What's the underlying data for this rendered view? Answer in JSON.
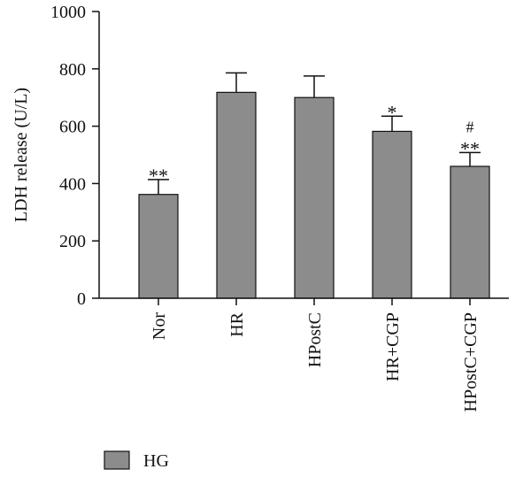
{
  "chart_data": {
    "type": "bar",
    "ylabel": "LDH release (U/L)",
    "xlabel": "",
    "ylim": [
      0,
      1000
    ],
    "yticks": [
      0,
      200,
      400,
      600,
      800,
      1000
    ],
    "categories": [
      "Nor",
      "HR",
      "HPostC",
      "HR+CGP",
      "HPostC+CGP"
    ],
    "series": [
      {
        "name": "HG",
        "color": "#8c8c8c",
        "values": [
          362,
          718,
          700,
          582,
          460
        ],
        "errors": [
          52,
          68,
          75,
          53,
          48
        ],
        "annotations": [
          [
            "**"
          ],
          [],
          [],
          [
            "*"
          ],
          [
            "#",
            "**"
          ]
        ]
      }
    ],
    "legend_position": "bottom-left",
    "grid": false
  }
}
